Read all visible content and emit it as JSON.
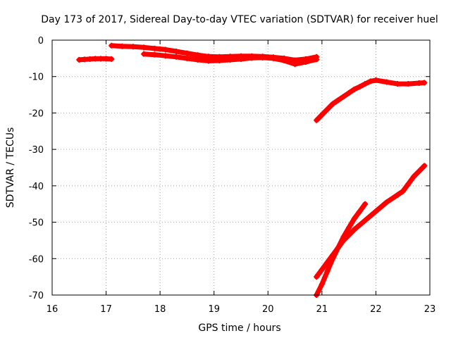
{
  "chart_data": {
    "type": "scatter",
    "title": "Day 173 of 2017, Sidereal Day-to-day VTEC variation (SDTVAR) for receiver huel",
    "xlabel": "GPS time / hours",
    "ylabel": "SDTVAR / TECUs",
    "xlim": [
      16,
      23
    ],
    "ylim": [
      -70,
      0
    ],
    "xticks": [
      16,
      17,
      18,
      19,
      20,
      21,
      22,
      23
    ],
    "yticks": [
      0,
      -10,
      -20,
      -30,
      -40,
      -50,
      -60,
      -70
    ],
    "grid": true,
    "marker": "+",
    "color": "#ff0000",
    "series": [
      {
        "x": [
          16.5,
          16.6,
          16.7,
          16.8,
          16.9,
          17.0,
          17.1
        ],
        "y": [
          -5.4,
          -5.3,
          -5.2,
          -5.1,
          -5.1,
          -5.1,
          -5.2
        ]
      },
      {
        "x": [
          17.1,
          17.3,
          17.5,
          17.7,
          17.9,
          18.1,
          18.3,
          18.5,
          18.7,
          18.9,
          19.1,
          19.3,
          19.5,
          19.7,
          19.9,
          20.1,
          20.3,
          20.5,
          20.7,
          20.9
        ],
        "y": [
          -1.5,
          -1.7,
          -1.8,
          -2.0,
          -2.3,
          -2.6,
          -3.1,
          -3.6,
          -4.1,
          -4.5,
          -4.6,
          -4.5,
          -4.4,
          -4.4,
          -4.5,
          -4.7,
          -5.0,
          -5.5,
          -5.2,
          -4.6
        ]
      },
      {
        "x": [
          17.7,
          17.9,
          18.1,
          18.3,
          18.5,
          18.7,
          18.9,
          19.1,
          19.3,
          19.5,
          19.7,
          19.9,
          20.1,
          20.3,
          20.5,
          20.7,
          20.9
        ],
        "y": [
          -3.8,
          -4.0,
          -4.3,
          -4.6,
          -5.0,
          -5.4,
          -5.7,
          -5.6,
          -5.4,
          -5.2,
          -4.9,
          -4.8,
          -5.0,
          -5.6,
          -6.6,
          -6.0,
          -5.3
        ]
      },
      {
        "x": [
          20.9,
          21.0,
          21.1,
          21.2,
          21.3,
          21.4,
          21.5,
          21.6,
          21.7,
          21.8,
          21.9,
          22.0,
          22.2,
          22.4,
          22.6,
          22.8,
          22.9
        ],
        "y": [
          -22.0,
          -20.5,
          -19.0,
          -17.5,
          -16.5,
          -15.5,
          -14.5,
          -13.5,
          -12.8,
          -12.0,
          -11.3,
          -11.0,
          -11.5,
          -12.0,
          -12.0,
          -11.8,
          -11.7
        ]
      },
      {
        "x": [
          20.9,
          21.0,
          21.1,
          21.2,
          21.3,
          21.4,
          21.5,
          21.6,
          21.7,
          21.8
        ],
        "y": [
          -70.0,
          -67.0,
          -63.5,
          -60.0,
          -57.0,
          -54.0,
          -51.5,
          -49.0,
          -47.0,
          -45.0
        ]
      },
      {
        "x": [
          20.9,
          21.0,
          21.1,
          21.2,
          21.3,
          21.4,
          21.6,
          21.8,
          22.0,
          22.2,
          22.4,
          22.5,
          22.6,
          22.7,
          22.8,
          22.9
        ],
        "y": [
          -65.0,
          -63.0,
          -61.0,
          -59.0,
          -57.0,
          -55.0,
          -52.0,
          -49.5,
          -47.0,
          -44.5,
          -42.5,
          -41.5,
          -39.5,
          -37.5,
          -36.0,
          -34.5
        ]
      }
    ]
  }
}
